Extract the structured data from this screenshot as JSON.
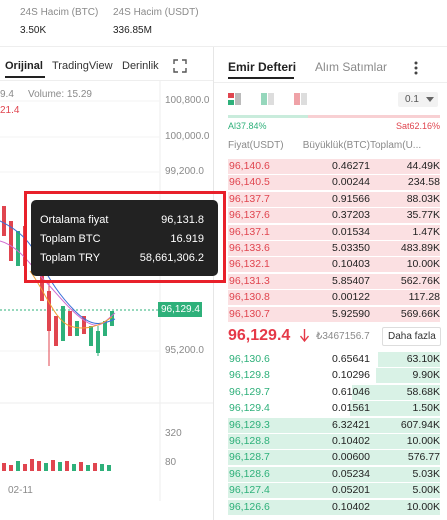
{
  "header": {
    "stats": [
      {
        "label": "24S Hacim (BTC)",
        "value": "3.50K"
      },
      {
        "label": "24S Hacim (USDT)",
        "value": "336.85M"
      }
    ]
  },
  "chart_tabs": [
    "Orijinal",
    "TradingView",
    "Derinlik"
  ],
  "chart": {
    "ohlc_fragment": "9.4",
    "volume_label": "Volume: 15.29",
    "ma_fragment": "21.4",
    "price_axis": [
      "100,800.0",
      "100,000.0",
      "99,200.0",
      "95,200.0"
    ],
    "last_price": "96,129.4",
    "volume_axis": [
      "320",
      "80"
    ],
    "date": "02-11"
  },
  "tooltip": {
    "rows": [
      {
        "label": "Ortalama fiyat",
        "value": "96,131.8"
      },
      {
        "label": "Toplam BTC",
        "value": "16.919"
      },
      {
        "label": "Toplam TRY",
        "value": "58,661,306.2"
      }
    ]
  },
  "orderbook": {
    "tabs": [
      "Emir Defteri",
      "Alım Satımlar"
    ],
    "precision": "0.1",
    "buy_ratio": "Al37.84%",
    "sell_ratio": "Sat62.16%",
    "columns": [
      "Fiyat(USDT)",
      "Büyüklük(BTC)",
      "Toplam(U..."
    ],
    "asks": [
      [
        "96,140.6",
        "0.46271",
        "44.49K"
      ],
      [
        "96,140.5",
        "0.00244",
        "234.58"
      ],
      [
        "96,137.7",
        "0.91566",
        "88.03K"
      ],
      [
        "96,137.6",
        "0.37203",
        "35.77K"
      ],
      [
        "96,137.1",
        "0.01534",
        "1.47K"
      ],
      [
        "96,133.6",
        "5.03350",
        "483.89K"
      ],
      [
        "96,132.1",
        "0.10403",
        "10.00K"
      ],
      [
        "96,131.3",
        "5.85407",
        "562.76K"
      ],
      [
        "96,130.8",
        "0.00122",
        "117.28"
      ],
      [
        "96,130.7",
        "5.92590",
        "569.66K"
      ]
    ],
    "mid_price": "96,129.4",
    "mid_price_try": "₺3467156.7",
    "more": "Daha fazla",
    "bids": [
      [
        "96,130.6",
        "0.65641",
        "63.10K"
      ],
      [
        "96,129.8",
        "0.10296",
        "9.90K"
      ],
      [
        "96,129.7",
        "0.61046",
        "58.68K"
      ],
      [
        "96,129.4",
        "0.01561",
        "1.50K"
      ],
      [
        "96,129.3",
        "6.32421",
        "607.94K"
      ],
      [
        "96,128.8",
        "0.10402",
        "10.00K"
      ],
      [
        "96,128.7",
        "0.00600",
        "576.77"
      ],
      [
        "96,128.6",
        "0.05234",
        "5.03K"
      ],
      [
        "96,127.4",
        "0.05201",
        "5.00K"
      ],
      [
        "96,126.6",
        "0.10402",
        "10.00K"
      ]
    ]
  }
}
